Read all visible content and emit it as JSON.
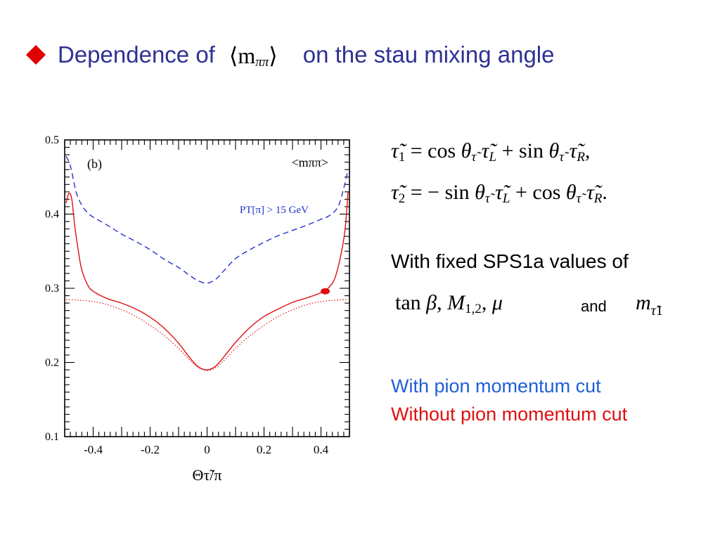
{
  "title": {
    "prefix": "Dependence of",
    "math": "⟨m",
    "math_sub": "ππ",
    "math_close": "⟩",
    "suffix": "on the stau mixing angle",
    "title_color": "#2e3192",
    "bullet_color": "#e00000"
  },
  "equations": {
    "eq1": "τ̃1 = cos θτ̃ τ̃L + sin θτ̃ τ̃R,",
    "eq2": "τ̃2 = − sin θτ̃ τ̃L + cos θτ̃ τ̃R."
  },
  "params": {
    "intro": "With fixed SPS1a values of",
    "list": "tan β, M1,2, μ",
    "and": "and",
    "mass": "mτ̃1"
  },
  "legend": {
    "blue_label": "With pion momentum cut",
    "red_label": "Without pion momentum cut",
    "blue_color": "#1f5fd6",
    "red_color": "#e01010"
  },
  "chart_data": {
    "type": "line",
    "panel_label": "(b)",
    "corner_label": "<mππ>",
    "annotation": "PT[π] > 15 GeV",
    "xlabel": "Θτ̃/π",
    "ylabel": "",
    "xlim": [
      -0.5,
      0.5
    ],
    "ylim": [
      0.1,
      0.5
    ],
    "xticks": [
      -0.4,
      -0.2,
      0,
      0.2,
      0.4
    ],
    "xtick_labels": [
      "-0.4",
      "-0.2",
      "0",
      "0.2",
      "0.4"
    ],
    "yticks": [
      0.1,
      0.2,
      0.3,
      0.4,
      0.5
    ],
    "ytick_labels": [
      "0.1",
      "0.2",
      "0.3",
      "0.4",
      "0.5"
    ],
    "grid": false,
    "series": [
      {
        "style": "dashed",
        "color": "#2233cc",
        "x": [
          -0.495,
          -0.48,
          -0.46,
          -0.44,
          -0.42,
          -0.4,
          -0.35,
          -0.3,
          -0.25,
          -0.2,
          -0.15,
          -0.1,
          -0.06,
          -0.03,
          0.0,
          0.03,
          0.06,
          0.1,
          0.15,
          0.2,
          0.25,
          0.3,
          0.35,
          0.4,
          0.43,
          0.46,
          0.48,
          0.495
        ],
        "y": [
          0.478,
          0.465,
          0.43,
          0.412,
          0.402,
          0.396,
          0.385,
          0.373,
          0.363,
          0.352,
          0.339,
          0.328,
          0.317,
          0.31,
          0.307,
          0.312,
          0.324,
          0.34,
          0.352,
          0.362,
          0.371,
          0.378,
          0.385,
          0.393,
          0.398,
          0.41,
          0.435,
          0.46
        ]
      },
      {
        "style": "solid",
        "color": "#e01010",
        "x": [
          -0.495,
          -0.485,
          -0.475,
          -0.465,
          -0.45,
          -0.44,
          -0.42,
          -0.4,
          -0.35,
          -0.3,
          -0.25,
          -0.2,
          -0.15,
          -0.1,
          -0.06,
          -0.03,
          0.0,
          0.03,
          0.06,
          0.1,
          0.15,
          0.2,
          0.25,
          0.3,
          0.35,
          0.4,
          0.43,
          0.45,
          0.47,
          0.485,
          0.495
        ],
        "y": [
          0.415,
          0.428,
          0.42,
          0.385,
          0.345,
          0.325,
          0.305,
          0.296,
          0.286,
          0.28,
          0.272,
          0.261,
          0.246,
          0.226,
          0.206,
          0.194,
          0.19,
          0.195,
          0.208,
          0.227,
          0.247,
          0.262,
          0.272,
          0.281,
          0.287,
          0.294,
          0.302,
          0.315,
          0.345,
          0.38,
          0.43
        ]
      },
      {
        "style": "dotted",
        "color": "#e01010",
        "x": [
          -0.495,
          -0.45,
          -0.4,
          -0.35,
          -0.3,
          -0.25,
          -0.2,
          -0.15,
          -0.1,
          -0.06,
          -0.03,
          0.0,
          0.03,
          0.06,
          0.1,
          0.15,
          0.2,
          0.25,
          0.3,
          0.35,
          0.4,
          0.45,
          0.495
        ],
        "y": [
          0.285,
          0.284,
          0.282,
          0.278,
          0.271,
          0.262,
          0.25,
          0.236,
          0.219,
          0.203,
          0.193,
          0.189,
          0.193,
          0.203,
          0.219,
          0.236,
          0.25,
          0.262,
          0.271,
          0.278,
          0.282,
          0.284,
          0.285
        ]
      }
    ],
    "marker": {
      "x": 0.415,
      "y": 0.296,
      "color": "#e01010"
    }
  }
}
